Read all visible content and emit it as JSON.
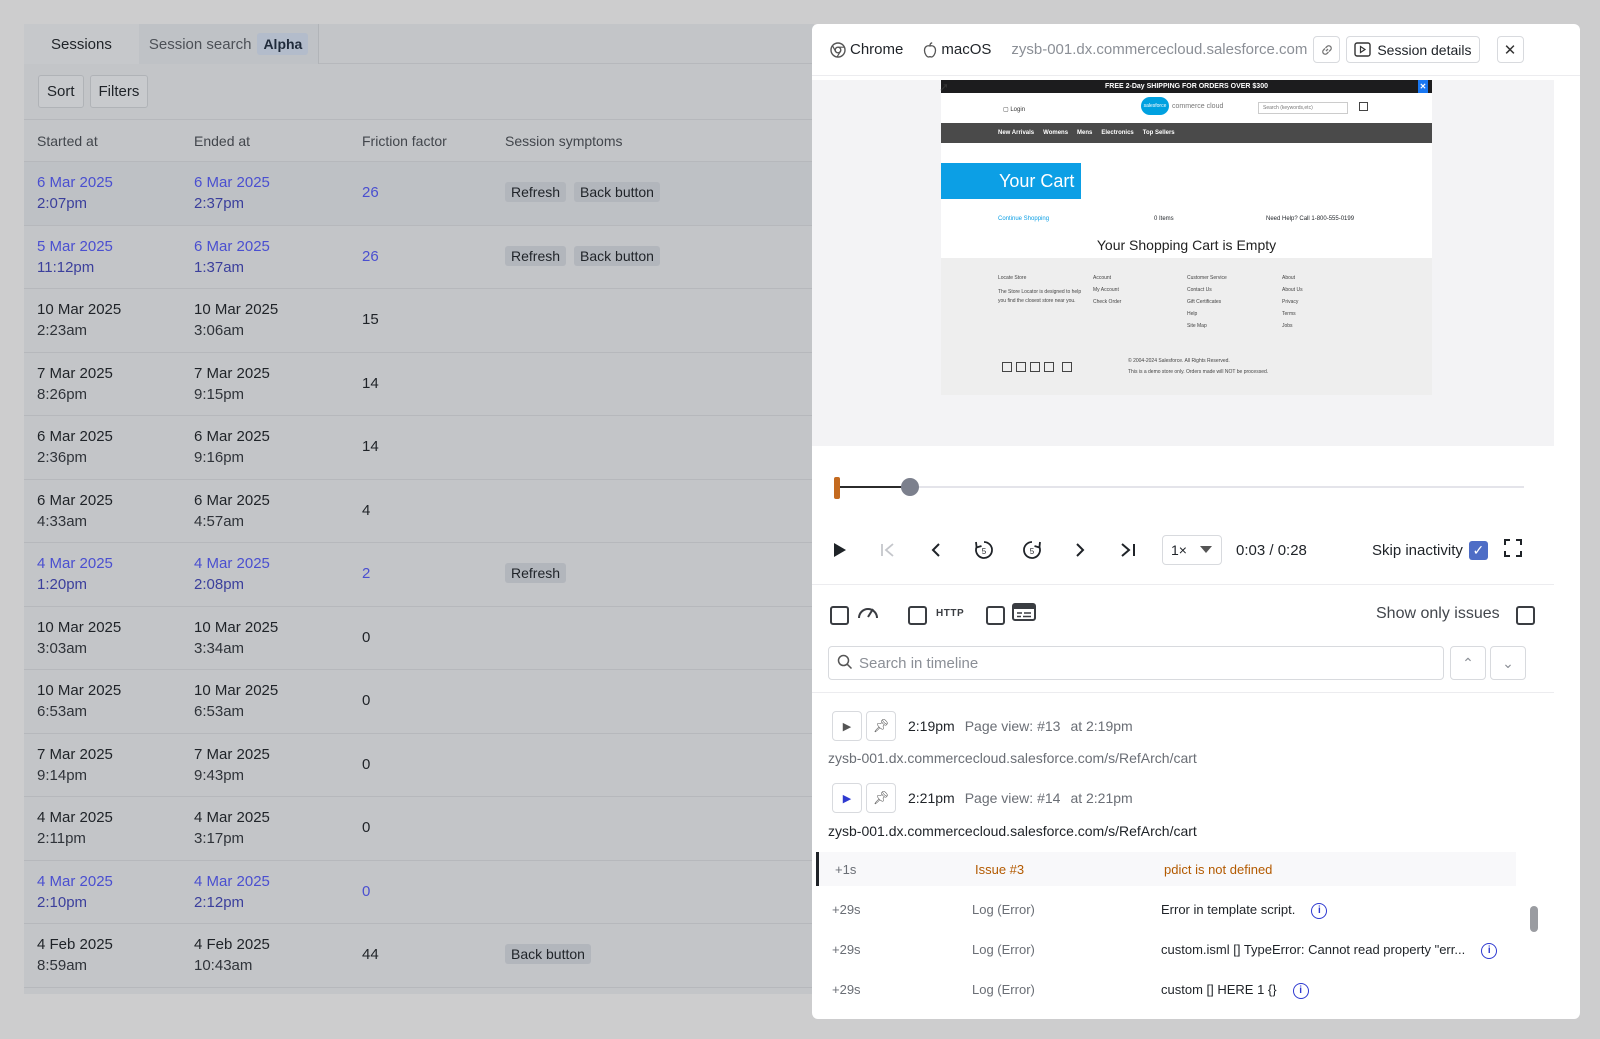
{
  "left": {
    "tabs": [
      {
        "label": "Sessions"
      },
      {
        "label": "Session search",
        "badge": "Alpha"
      }
    ],
    "toolbar": {
      "sort": "Sort",
      "filters": "Filters"
    },
    "columns": [
      "Started at",
      "Ended at",
      "Friction factor",
      "Session symptoms"
    ],
    "rows": [
      {
        "start_date": "6 Mar 2025",
        "start_time": "2:07pm",
        "end_date": "6 Mar 2025",
        "end_time": "2:37pm",
        "friction": "26",
        "symptoms": [
          "Refresh",
          "Back button"
        ],
        "link": true,
        "hl": true
      },
      {
        "start_date": "5 Mar 2025",
        "start_time": "11:12pm",
        "end_date": "6 Mar 2025",
        "end_time": "1:37am",
        "friction": "26",
        "symptoms": [
          "Refresh",
          "Back button"
        ],
        "link": true
      },
      {
        "start_date": "10 Mar 2025",
        "start_time": "2:23am",
        "end_date": "10 Mar 2025",
        "end_time": "3:06am",
        "friction": "15",
        "symptoms": []
      },
      {
        "start_date": "7 Mar 2025",
        "start_time": "8:26pm",
        "end_date": "7 Mar 2025",
        "end_time": "9:15pm",
        "friction": "14",
        "symptoms": []
      },
      {
        "start_date": "6 Mar 2025",
        "start_time": "2:36pm",
        "end_date": "6 Mar 2025",
        "end_time": "9:16pm",
        "friction": "14",
        "symptoms": []
      },
      {
        "start_date": "6 Mar 2025",
        "start_time": "4:33am",
        "end_date": "6 Mar 2025",
        "end_time": "4:57am",
        "friction": "4",
        "symptoms": []
      },
      {
        "start_date": "4 Mar 2025",
        "start_time": "1:20pm",
        "end_date": "4 Mar 2025",
        "end_time": "2:08pm",
        "friction": "2",
        "symptoms": [
          "Refresh"
        ],
        "link": true
      },
      {
        "start_date": "10 Mar 2025",
        "start_time": "3:03am",
        "end_date": "10 Mar 2025",
        "end_time": "3:34am",
        "friction": "0",
        "symptoms": []
      },
      {
        "start_date": "10 Mar 2025",
        "start_time": "6:53am",
        "end_date": "10 Mar 2025",
        "end_time": "6:53am",
        "friction": "0",
        "symptoms": []
      },
      {
        "start_date": "7 Mar 2025",
        "start_time": "9:14pm",
        "end_date": "7 Mar 2025",
        "end_time": "9:43pm",
        "friction": "0",
        "symptoms": []
      },
      {
        "start_date": "4 Mar 2025",
        "start_time": "2:11pm",
        "end_date": "4 Mar 2025",
        "end_time": "3:17pm",
        "friction": "0",
        "symptoms": []
      },
      {
        "start_date": "4 Mar 2025",
        "start_time": "2:10pm",
        "end_date": "4 Mar 2025",
        "end_time": "2:12pm",
        "friction": "0",
        "symptoms": [],
        "link": true
      },
      {
        "start_date": "4 Feb 2025",
        "start_time": "8:59am",
        "end_date": "4 Feb 2025",
        "end_time": "10:43am",
        "friction": "44",
        "symptoms": [
          "Back button"
        ]
      }
    ]
  },
  "modal": {
    "browser": "Chrome",
    "os": "macOS",
    "url": "zysb-001.dx.commercecloud.salesforce.com",
    "session_details": "Session details",
    "site": {
      "promo": "FREE 2-Day SHIPPING FOR ORDERS OVER $300",
      "login": "Login",
      "logo_text": "salesforce",
      "logo_sub": "commerce cloud",
      "search_placeholder": "Search (keywords,etc)",
      "nav": [
        "New Arrivals",
        "Womens",
        "Mens",
        "Electronics",
        "Top Sellers"
      ],
      "cart_title": "Your Cart",
      "continue": "Continue Shopping",
      "items": "0 Items",
      "help": "Need Help? Call 1-800-555-0199",
      "empty": "Your Shopping Cart is Empty",
      "footer_cols": [
        {
          "title": "Locate Store",
          "lines": [
            "The Store Locator is designed to help you find the closest store near you."
          ]
        },
        {
          "title": "Account",
          "lines": [
            "My Account",
            "Check Order"
          ]
        },
        {
          "title": "Customer Service",
          "lines": [
            "Contact Us",
            "Gift Certificates",
            "Help",
            "Site Map"
          ]
        },
        {
          "title": "About",
          "lines": [
            "About Us",
            "Privacy",
            "Terms",
            "Jobs"
          ]
        }
      ],
      "copyright": "© 2004-2024 Salesforce. All Rights Reserved.",
      "demo_note": "This is a demo store only. Orders made will NOT be processed."
    },
    "player": {
      "progress": 0.107,
      "speed": "1×",
      "timecode": "0:03 / 0:28",
      "skip_inactivity": "Skip inactivity"
    },
    "filters": {
      "http": "HTTP",
      "show_only_issues": "Show only issues"
    },
    "search": {
      "placeholder": "Search in timeline"
    },
    "timeline": {
      "pageviews": [
        {
          "time": "2:19pm",
          "label": "Page view: #13",
          "at": "at 2:19pm",
          "url": "zysb-001.dx.commercecloud.salesforce.com/s/RefArch/cart"
        },
        {
          "time": "2:21pm",
          "label": "Page view: #14",
          "at": "at 2:21pm",
          "url": "zysb-001.dx.commercecloud.salesforce.com/s/RefArch/cart"
        }
      ],
      "events": [
        {
          "offset": "+1s",
          "kind": "Issue #3",
          "message": "pdict is not defined",
          "issue": true
        },
        {
          "offset": "+29s",
          "kind": "Log (Error)",
          "message": "Error in template script."
        },
        {
          "offset": "+29s",
          "kind": "Log (Error)",
          "message": "custom.isml [] TypeError: Cannot read property \"err..."
        },
        {
          "offset": "+29s",
          "kind": "Log (Error)",
          "message": "custom [] HERE 1 {}"
        }
      ]
    }
  }
}
